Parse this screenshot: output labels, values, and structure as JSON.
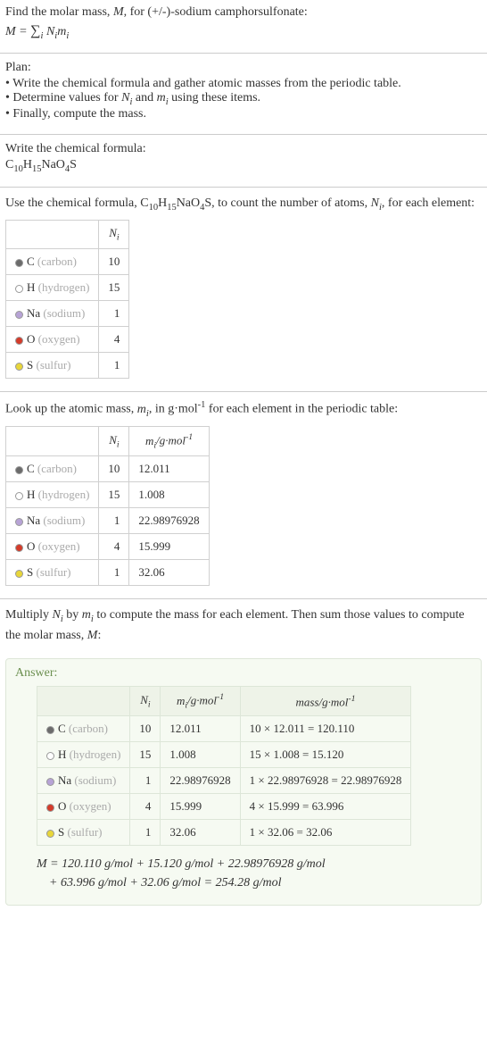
{
  "header": {
    "line1": "Find the molar mass, M, for (+/-)-sodium camphorsulfonate:",
    "formula_html": "M = ∑<sub>i</sub> N<sub>i</sub>m<sub>i</sub>"
  },
  "plan": {
    "title": "Plan:",
    "items": [
      "Write the chemical formula and gather atomic masses from the periodic table.",
      "Determine values for Nᵢ and mᵢ using these items.",
      "Finally, compute the mass."
    ]
  },
  "formula_section": {
    "title": "Write the chemical formula:",
    "formula": "C10H15NaO4S"
  },
  "count_section": {
    "intro": "Use the chemical formula, C₁₀H₁₅NaO₄S, to count the number of atoms, Nᵢ, for each element:",
    "header_ni": "Nᵢ"
  },
  "mass_section": {
    "intro": "Look up the atomic mass, mᵢ, in g·mol⁻¹ for each element in the periodic table:",
    "header_ni": "Nᵢ",
    "header_mi": "mᵢ/g·mol⁻¹"
  },
  "multiply_section": {
    "intro": "Multiply Nᵢ by mᵢ to compute the mass for each element. Then sum those values to compute the molar mass, M:"
  },
  "elements": [
    {
      "sym": "C",
      "name": "carbon",
      "color": "#6b6b6b",
      "ni": "10",
      "mi": "12.011",
      "mass_calc": "10 × 12.011 = 120.110"
    },
    {
      "sym": "H",
      "name": "hydrogen",
      "color": "#ffffff",
      "ni": "15",
      "mi": "1.008",
      "mass_calc": "15 × 1.008 = 15.120"
    },
    {
      "sym": "Na",
      "name": "sodium",
      "color": "#b7a3d6",
      "ni": "1",
      "mi": "22.98976928",
      "mass_calc": "1 × 22.98976928 = 22.98976928"
    },
    {
      "sym": "O",
      "name": "oxygen",
      "color": "#d43b2a",
      "ni": "4",
      "mi": "15.999",
      "mass_calc": "4 × 15.999 = 63.996"
    },
    {
      "sym": "S",
      "name": "sulfur",
      "color": "#e8d63a",
      "ni": "1",
      "mi": "32.06",
      "mass_calc": "1 × 32.06 = 32.06"
    }
  ],
  "answer": {
    "title": "Answer:",
    "header_ni": "Nᵢ",
    "header_mi": "mᵢ/g·mol⁻¹",
    "header_mass": "mass/g·mol⁻¹",
    "final_line1": "M = 120.110 g/mol + 15.120 g/mol + 22.98976928 g/mol",
    "final_line2": "+ 63.996 g/mol + 32.06 g/mol = 254.28 g/mol"
  }
}
